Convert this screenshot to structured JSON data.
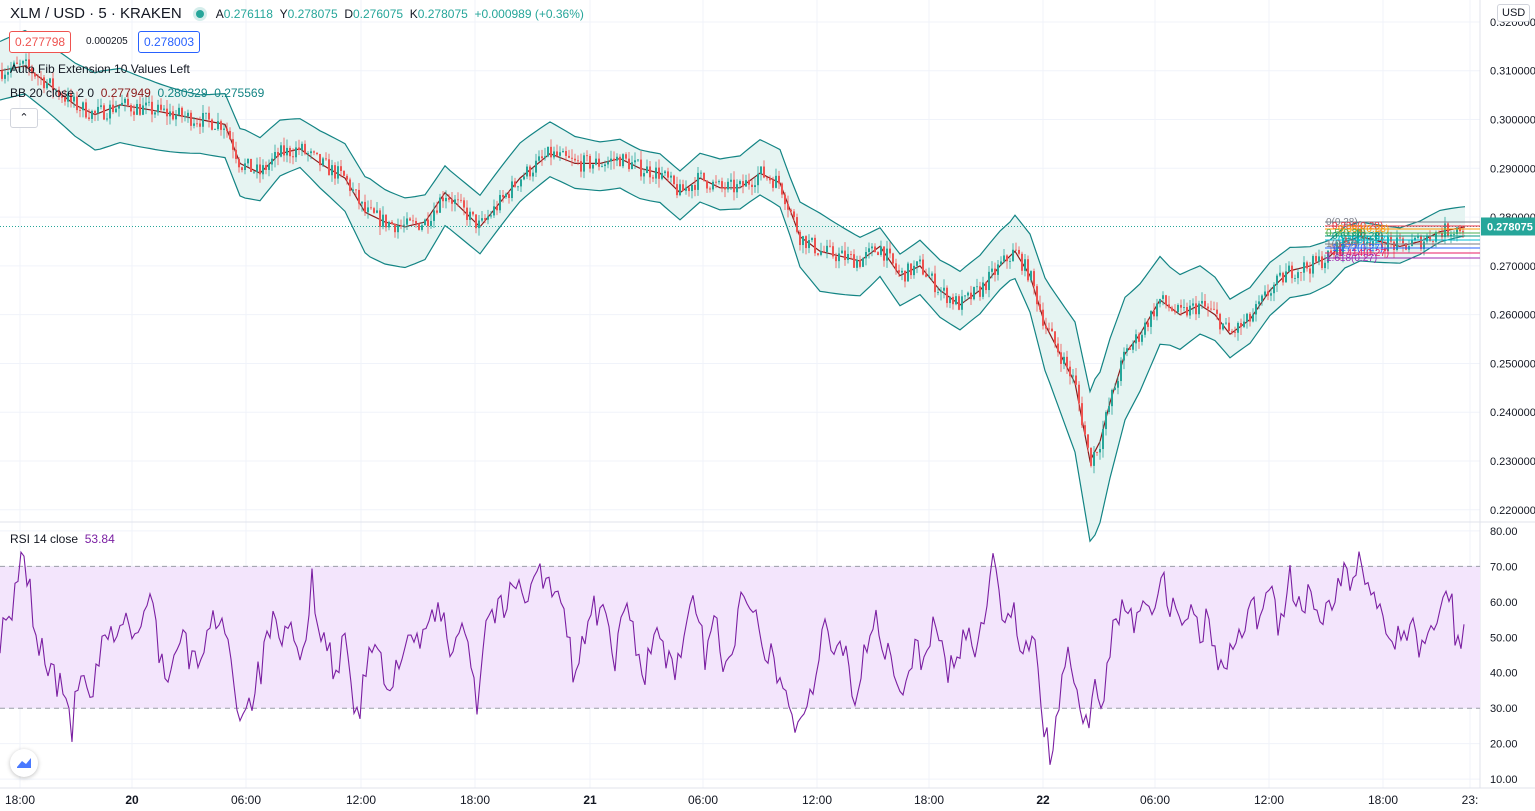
{
  "header": {
    "symbol": "XLM / USD · 5 · KRAKEN",
    "ohlc": {
      "o_label": "A",
      "o": "0.276118",
      "h_label": "Y",
      "h": "0.278075",
      "l_label": "D",
      "l": "0.276075",
      "c_label": "K",
      "c": "0.278075",
      "change": "+0.000989 (+0.36%)"
    },
    "sell_price": "0.277798",
    "spread": "0.000205",
    "buy_price": "0.278003",
    "indicator1": "Auto Fib Extension 10 Values Left",
    "indicator2_name": "BB 20 close 2 0",
    "indicator2_basis": "0.277949",
    "indicator2_upper": "0.280329",
    "indicator2_lower": "0.275569",
    "rsi_name": "RSI 14 close",
    "rsi_value": "53.84",
    "currency": "USD"
  },
  "colors": {
    "band": "#138484",
    "band_fill": "#e6f4f2",
    "basis": "#8b1a1a",
    "up": "#26a69a",
    "down": "#ef5350",
    "rsi": "#7b1fa2",
    "rsi_fill": "#f3e5fc"
  },
  "chart_data": [
    {
      "type": "candlestick",
      "y_axis_ticks": [
        "0.320000",
        "0.310000",
        "0.300000",
        "0.290000",
        "0.280000",
        "0.270000",
        "0.260000",
        "0.250000",
        "0.240000",
        "0.230000",
        "0.220000"
      ],
      "ylim": [
        0.2175,
        0.3245
      ],
      "x_axis_ticks": [
        "18:00",
        "20",
        "06:00",
        "12:00",
        "18:00",
        "21",
        "06:00",
        "12:00",
        "18:00",
        "22",
        "06:00",
        "12:00",
        "18:00",
        "23:"
      ],
      "last_price": "0.278075",
      "price_path": [
        [
          0,
          0.31
        ],
        [
          25,
          0.311
        ],
        [
          50,
          0.307
        ],
        [
          75,
          0.303
        ],
        [
          95,
          0.301
        ],
        [
          120,
          0.303
        ],
        [
          150,
          0.302
        ],
        [
          175,
          0.301
        ],
        [
          200,
          0.3
        ],
        [
          225,
          0.299
        ],
        [
          240,
          0.291
        ],
        [
          260,
          0.289
        ],
        [
          280,
          0.293
        ],
        [
          300,
          0.294
        ],
        [
          320,
          0.291
        ],
        [
          345,
          0.288
        ],
        [
          365,
          0.281
        ],
        [
          385,
          0.279
        ],
        [
          405,
          0.278
        ],
        [
          425,
          0.279
        ],
        [
          445,
          0.285
        ],
        [
          465,
          0.281
        ],
        [
          480,
          0.278
        ],
        [
          500,
          0.283
        ],
        [
          520,
          0.288
        ],
        [
          550,
          0.293
        ],
        [
          575,
          0.291
        ],
        [
          600,
          0.291
        ],
        [
          620,
          0.292
        ],
        [
          640,
          0.29
        ],
        [
          660,
          0.289
        ],
        [
          680,
          0.285
        ],
        [
          700,
          0.288
        ],
        [
          720,
          0.286
        ],
        [
          740,
          0.286
        ],
        [
          760,
          0.289
        ],
        [
          780,
          0.287
        ],
        [
          800,
          0.276
        ],
        [
          820,
          0.273
        ],
        [
          840,
          0.272
        ],
        [
          860,
          0.271
        ],
        [
          880,
          0.274
        ],
        [
          900,
          0.268
        ],
        [
          920,
          0.27
        ],
        [
          940,
          0.265
        ],
        [
          960,
          0.262
        ],
        [
          980,
          0.265
        ],
        [
          1000,
          0.27
        ],
        [
          1015,
          0.273
        ],
        [
          1030,
          0.268
        ],
        [
          1045,
          0.258
        ],
        [
          1060,
          0.252
        ],
        [
          1075,
          0.246
        ],
        [
          1090,
          0.23
        ],
        [
          1100,
          0.234
        ],
        [
          1110,
          0.242
        ],
        [
          1125,
          0.252
        ],
        [
          1140,
          0.256
        ],
        [
          1160,
          0.263
        ],
        [
          1180,
          0.26
        ],
        [
          1200,
          0.262
        ],
        [
          1215,
          0.26
        ],
        [
          1230,
          0.256
        ],
        [
          1250,
          0.259
        ],
        [
          1270,
          0.265
        ],
        [
          1290,
          0.269
        ],
        [
          1310,
          0.27
        ],
        [
          1330,
          0.272
        ],
        [
          1345,
          0.275
        ],
        [
          1360,
          0.276
        ],
        [
          1380,
          0.275
        ],
        [
          1400,
          0.274
        ],
        [
          1420,
          0.275
        ],
        [
          1440,
          0.277
        ],
        [
          1465,
          0.278
        ]
      ],
      "bollinger_halfwidth": [
        [
          0,
          0.006
        ],
        [
          100,
          0.008
        ],
        [
          200,
          0.006
        ],
        [
          245,
          0.007
        ],
        [
          300,
          0.005
        ],
        [
          370,
          0.008
        ],
        [
          450,
          0.006
        ],
        [
          520,
          0.006
        ],
        [
          600,
          0.005
        ],
        [
          700,
          0.005
        ],
        [
          790,
          0.006
        ],
        [
          820,
          0.008
        ],
        [
          880,
          0.005
        ],
        [
          950,
          0.006
        ],
        [
          1010,
          0.006
        ],
        [
          1050,
          0.01
        ],
        [
          1095,
          0.016
        ],
        [
          1130,
          0.012
        ],
        [
          1170,
          0.008
        ],
        [
          1230,
          0.006
        ],
        [
          1300,
          0.005
        ],
        [
          1360,
          0.004
        ],
        [
          1465,
          0.003
        ]
      ],
      "fib_labels": [
        "0(0.28)",
        "0.236(0.28)",
        "0.382(0.28)",
        "0.5(0.28)",
        "0.618(0.28)",
        "0.786(0.27)",
        "1(0.27)",
        "1.272(0.27)",
        "1.414(0.27)",
        "1.618(0.27)"
      ]
    },
    {
      "type": "line",
      "series": [
        {
          "name": "RSI 14 close",
          "last": 53.84
        }
      ],
      "y_axis_ticks": [
        "80.00",
        "70.00",
        "60.00",
        "50.00",
        "40.00",
        "30.00",
        "20.00",
        "10.00"
      ],
      "ylim": [
        7.5,
        82.5
      ],
      "band": [
        30,
        70
      ],
      "rsi_path": [
        [
          0,
          50
        ],
        [
          12,
          55
        ],
        [
          20,
          72
        ],
        [
          28,
          68
        ],
        [
          35,
          50
        ],
        [
          45,
          45
        ],
        [
          55,
          38
        ],
        [
          65,
          33
        ],
        [
          72,
          25
        ],
        [
          80,
          40
        ],
        [
          90,
          30
        ],
        [
          100,
          45
        ],
        [
          115,
          52
        ],
        [
          125,
          55
        ],
        [
          135,
          50
        ],
        [
          145,
          55
        ],
        [
          152,
          62
        ],
        [
          160,
          45
        ],
        [
          170,
          38
        ],
        [
          180,
          50
        ],
        [
          195,
          42
        ],
        [
          210,
          52
        ],
        [
          222,
          58
        ],
        [
          230,
          45
        ],
        [
          240,
          28
        ],
        [
          250,
          32
        ],
        [
          262,
          42
        ],
        [
          272,
          55
        ],
        [
          282,
          45
        ],
        [
          290,
          55
        ],
        [
          300,
          40
        ],
        [
          312,
          65
        ],
        [
          322,
          52
        ],
        [
          335,
          40
        ],
        [
          345,
          50
        ],
        [
          358,
          25
        ],
        [
          368,
          45
        ],
        [
          378,
          48
        ],
        [
          388,
          30
        ],
        [
          398,
          45
        ],
        [
          410,
          52
        ],
        [
          420,
          45
        ],
        [
          432,
          58
        ],
        [
          442,
          55
        ],
        [
          452,
          45
        ],
        [
          462,
          58
        ],
        [
          472,
          42
        ],
        [
          478,
          30
        ],
        [
          485,
          55
        ],
        [
          495,
          58
        ],
        [
          505,
          58
        ],
        [
          515,
          65
        ],
        [
          525,
          62
        ],
        [
          535,
          70
        ],
        [
          545,
          66
        ],
        [
          555,
          62
        ],
        [
          565,
          55
        ],
        [
          575,
          38
        ],
        [
          585,
          52
        ],
        [
          595,
          58
        ],
        [
          605,
          55
        ],
        [
          615,
          42
        ],
        [
          625,
          60
        ],
        [
          635,
          50
        ],
        [
          645,
          40
        ],
        [
          655,
          52
        ],
        [
          665,
          45
        ],
        [
          675,
          38
        ],
        [
          685,
          55
        ],
        [
          695,
          58
        ],
        [
          705,
          45
        ],
        [
          715,
          55
        ],
        [
          725,
          42
        ],
        [
          735,
          50
        ],
        [
          745,
          64
        ],
        [
          755,
          60
        ],
        [
          765,
          48
        ],
        [
          775,
          42
        ],
        [
          785,
          35
        ],
        [
          795,
          25
        ],
        [
          805,
          30
        ],
        [
          815,
          38
        ],
        [
          825,
          52
        ],
        [
          835,
          45
        ],
        [
          845,
          50
        ],
        [
          855,
          30
        ],
        [
          865,
          48
        ],
        [
          875,
          55
        ],
        [
          885,
          46
        ],
        [
          895,
          40
        ],
        [
          905,
          32
        ],
        [
          915,
          50
        ],
        [
          925,
          42
        ],
        [
          935,
          55
        ],
        [
          945,
          40
        ],
        [
          955,
          45
        ],
        [
          965,
          52
        ],
        [
          975,
          48
        ],
        [
          985,
          58
        ],
        [
          993,
          72
        ],
        [
          1003,
          55
        ],
        [
          1013,
          60
        ],
        [
          1023,
          45
        ],
        [
          1033,
          50
        ],
        [
          1043,
          25
        ],
        [
          1051,
          17
        ],
        [
          1060,
          35
        ],
        [
          1070,
          45
        ],
        [
          1080,
          30
        ],
        [
          1088,
          22
        ],
        [
          1095,
          38
        ],
        [
          1103,
          30
        ],
        [
          1113,
          55
        ],
        [
          1123,
          60
        ],
        [
          1133,
          55
        ],
        [
          1143,
          62
        ],
        [
          1153,
          55
        ],
        [
          1160,
          70
        ],
        [
          1170,
          58
        ],
        [
          1180,
          55
        ],
        [
          1190,
          60
        ],
        [
          1200,
          52
        ],
        [
          1210,
          55
        ],
        [
          1220,
          40
        ],
        [
          1230,
          45
        ],
        [
          1240,
          52
        ],
        [
          1250,
          60
        ],
        [
          1260,
          55
        ],
        [
          1270,
          66
        ],
        [
          1280,
          52
        ],
        [
          1290,
          66
        ],
        [
          1300,
          58
        ],
        [
          1310,
          62
        ],
        [
          1320,
          55
        ],
        [
          1330,
          58
        ],
        [
          1340,
          68
        ],
        [
          1350,
          65
        ],
        [
          1360,
          72
        ],
        [
          1370,
          62
        ],
        [
          1380,
          55
        ],
        [
          1390,
          52
        ],
        [
          1400,
          48
        ],
        [
          1410,
          55
        ],
        [
          1420,
          48
        ],
        [
          1430,
          52
        ],
        [
          1440,
          60
        ],
        [
          1450,
          62
        ],
        [
          1460,
          42
        ],
        [
          1465,
          54
        ]
      ]
    }
  ]
}
